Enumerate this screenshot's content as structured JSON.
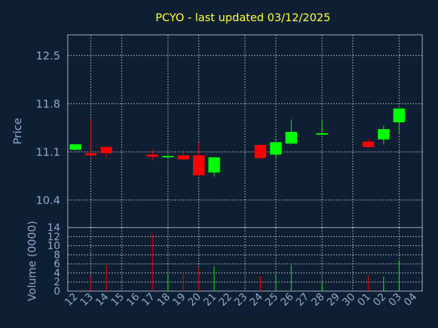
{
  "chart_data": {
    "type": "candlestick",
    "title": "PCYO - last updated 03/12/2025",
    "xlabel": "Day",
    "ylabel": "Price",
    "volume_label": "Volume (0000)",
    "x_ticks": [
      "12",
      "13",
      "14",
      "15",
      "16",
      "17",
      "18",
      "19",
      "20",
      "21",
      "22",
      "23",
      "24",
      "25",
      "26",
      "27",
      "28",
      "29",
      "30",
      "01",
      "02",
      "03",
      "04"
    ],
    "price_ylim": [
      10.0,
      12.8
    ],
    "price_ticks": [
      "10.4",
      "11.1",
      "11.8",
      "12.5"
    ],
    "volume_ylim": [
      0,
      14
    ],
    "volume_ticks": [
      "0",
      "2",
      "4",
      "6",
      "8",
      "10",
      "12",
      "14"
    ],
    "grid": true,
    "up_color": "#00ff00",
    "down_color": "#ff0000",
    "candles": [
      {
        "x": "12",
        "open": 11.13,
        "high": 11.21,
        "low": 11.12,
        "close": 11.21,
        "volume": 0
      },
      {
        "x": "13",
        "open": 11.08,
        "high": 11.58,
        "low": 11.02,
        "close": 11.05,
        "volume": 3.5
      },
      {
        "x": "14",
        "open": 11.17,
        "high": 11.17,
        "low": 11.02,
        "close": 11.08,
        "volume": 5.7
      },
      {
        "x": "17",
        "open": 11.06,
        "high": 11.14,
        "low": 10.98,
        "close": 11.03,
        "volume": 12.5
      },
      {
        "x": "18",
        "open": 11.03,
        "high": 11.06,
        "low": 11.02,
        "close": 11.04,
        "volume": 3.8
      },
      {
        "x": "19",
        "open": 11.05,
        "high": 11.12,
        "low": 10.98,
        "close": 10.99,
        "volume": 4.2
      },
      {
        "x": "20",
        "open": 11.05,
        "high": 11.23,
        "low": 10.75,
        "close": 10.76,
        "volume": 5.2
      },
      {
        "x": "21",
        "open": 10.8,
        "high": 11.02,
        "low": 10.74,
        "close": 11.02,
        "volume": 5.5
      },
      {
        "x": "24",
        "open": 11.2,
        "high": 11.2,
        "low": 11.0,
        "close": 11.01,
        "volume": 3.3
      },
      {
        "x": "25",
        "open": 11.06,
        "high": 11.27,
        "low": 10.99,
        "close": 11.24,
        "volume": 3.4
      },
      {
        "x": "26",
        "open": 11.22,
        "high": 11.57,
        "low": 11.21,
        "close": 11.39,
        "volume": 5.8
      },
      {
        "x": "28",
        "open": 11.36,
        "high": 11.57,
        "low": 11.34,
        "close": 11.37,
        "volume": 2.0
      },
      {
        "x": "01",
        "open": 11.25,
        "high": 11.3,
        "low": 11.16,
        "close": 11.17,
        "volume": 3.5
      },
      {
        "x": "02",
        "open": 11.28,
        "high": 11.48,
        "low": 11.21,
        "close": 11.43,
        "volume": 3.2
      },
      {
        "x": "03",
        "open": 11.53,
        "high": 11.73,
        "low": 11.37,
        "close": 11.73,
        "volume": 6.8
      }
    ]
  }
}
